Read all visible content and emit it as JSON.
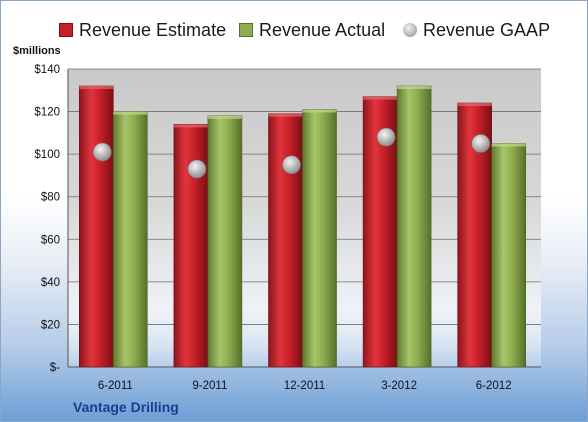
{
  "chart_data": {
    "type": "bar",
    "title": "",
    "xlabel": "",
    "ylabel": "$millions",
    "categories": [
      "6-2011",
      "9-2011",
      "12-2011",
      "3-2012",
      "6-2012"
    ],
    "series": [
      {
        "name": "Revenue Estimate",
        "kind": "bar",
        "color": "#c8202a",
        "values": [
          132,
          114,
          119,
          127,
          124
        ]
      },
      {
        "name": "Revenue Actual",
        "kind": "bar",
        "color": "#8fad4f",
        "values": [
          120,
          118,
          121,
          132,
          105
        ]
      },
      {
        "name": "Revenue GAAP",
        "kind": "marker",
        "color": "#a9a9a9",
        "values": [
          101,
          93,
          95,
          108,
          105
        ]
      }
    ],
    "ylim": [
      0,
      140
    ],
    "yticks": [
      0,
      20,
      40,
      60,
      80,
      100,
      120,
      140
    ],
    "ytick_labels": [
      "$-",
      "$20",
      "$40",
      "$60",
      "$80",
      "$100",
      "$120",
      "$140"
    ],
    "grid": true,
    "legend_position": "top"
  },
  "units_label": "$millions",
  "company": "Vantage Drilling",
  "legend": {
    "estimate": "Revenue Estimate",
    "actual": "Revenue Actual",
    "gaap": "Revenue GAAP"
  }
}
